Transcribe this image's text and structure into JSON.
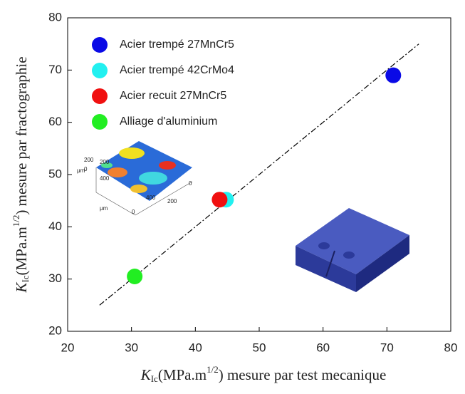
{
  "chart_data": {
    "type": "scatter",
    "xlabel": {
      "k": "K",
      "sub": "Ic",
      "mid": "(MPa.m",
      "sup": "1/2",
      "rest": ") mesure par test mecanique"
    },
    "ylabel": {
      "k": "K",
      "sub": "Ic",
      "mid": "(MPa.m",
      "sup": "1/2",
      "rest": ") mesure par fractographie"
    },
    "xlim": [
      20,
      80
    ],
    "ylim": [
      20,
      80
    ],
    "xticks": [
      20,
      30,
      40,
      50,
      60,
      70,
      80
    ],
    "yticks": [
      20,
      30,
      40,
      50,
      60,
      70,
      80
    ],
    "grid": false,
    "legend": "upper left",
    "series": [
      {
        "name": "Acier trempé 27MnCr5",
        "color": "#0a0ae6",
        "x": [
          71
        ],
        "y": [
          69
        ]
      },
      {
        "name": "Acier trempé 42CrMo4",
        "color": "#22f0f0",
        "x": [
          44.8
        ],
        "y": [
          45.2
        ]
      },
      {
        "name": "Acier recuit 27MnCr5",
        "color": "#f01010",
        "x": [
          43.8
        ],
        "y": [
          45.2
        ]
      },
      {
        "name": "Alliage d'aluminium",
        "color": "#22ee22",
        "x": [
          30.5
        ],
        "y": [
          30.5
        ]
      }
    ],
    "reference_line": {
      "x": [
        25,
        75
      ],
      "y": [
        25,
        75
      ]
    },
    "inset_texts": [
      "200",
      "0",
      "200",
      "400",
      "μm",
      "400",
      "200",
      "0",
      "0",
      "μm"
    ]
  }
}
